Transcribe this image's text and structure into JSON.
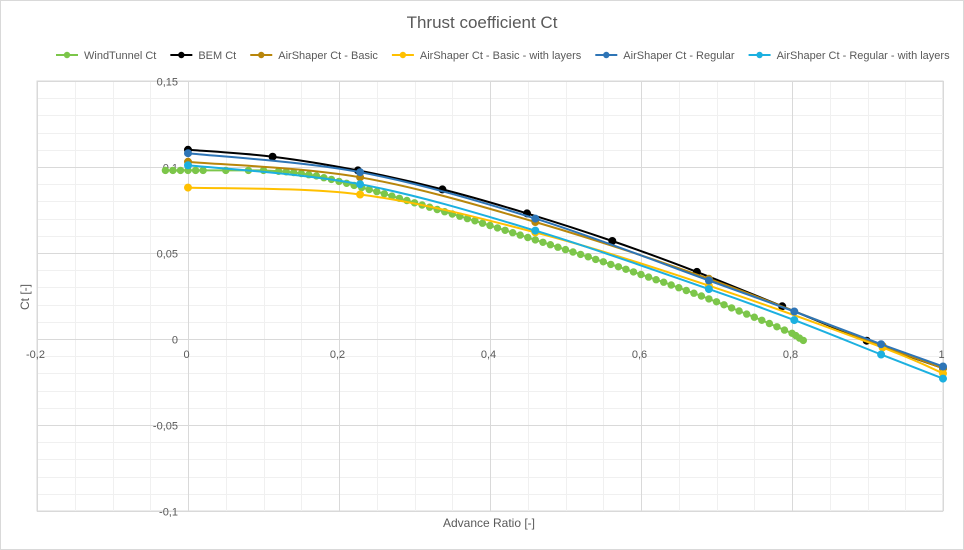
{
  "chart_data": {
    "type": "scatter",
    "title": "Thrust coefficient Ct",
    "xlabel": "Advance Ratio [-]",
    "ylabel": "Ct [-]",
    "xlim": [
      -0.2,
      1.0
    ],
    "ylim": [
      -0.1,
      0.15
    ],
    "x_ticks": [
      -0.2,
      0,
      0.2,
      0.4,
      0.6,
      0.8,
      1
    ],
    "x_tick_labels": [
      "-0,2",
      "0",
      "0,2",
      "0,4",
      "0,6",
      "0,8",
      "1"
    ],
    "y_ticks": [
      -0.1,
      -0.05,
      0,
      0.05,
      0.1,
      0.15
    ],
    "y_tick_labels": [
      "-0,1",
      "-0,05",
      "0",
      "0,05",
      "0,1",
      "0,15"
    ],
    "grid": true,
    "minor_grid": true,
    "legend_position": "top",
    "series": [
      {
        "name": "WindTunnel Ct",
        "color": "#7cc64a",
        "marker_size": 3.2,
        "smooth": false,
        "x": [
          -0.03,
          -0.02,
          -0.01,
          0.0,
          0.01,
          0.02,
          0.05,
          0.08,
          0.1,
          0.12,
          0.13,
          0.14,
          0.15,
          0.16,
          0.17,
          0.18,
          0.19,
          0.2,
          0.21,
          0.22,
          0.23,
          0.24,
          0.25,
          0.26,
          0.27,
          0.28,
          0.29,
          0.3,
          0.31,
          0.32,
          0.33,
          0.34,
          0.35,
          0.36,
          0.37,
          0.38,
          0.39,
          0.4,
          0.41,
          0.42,
          0.43,
          0.44,
          0.45,
          0.46,
          0.47,
          0.48,
          0.49,
          0.5,
          0.51,
          0.52,
          0.53,
          0.54,
          0.55,
          0.56,
          0.57,
          0.58,
          0.59,
          0.6,
          0.61,
          0.62,
          0.63,
          0.64,
          0.65,
          0.66,
          0.67,
          0.68,
          0.69,
          0.7,
          0.71,
          0.72,
          0.73,
          0.74,
          0.75,
          0.76,
          0.77,
          0.78,
          0.79,
          0.8,
          0.805,
          0.81,
          0.815
        ],
        "y": [
          0.098,
          0.098,
          0.098,
          0.098,
          0.098,
          0.098,
          0.098,
          0.098,
          0.098,
          0.0975,
          0.0972,
          0.0968,
          0.0962,
          0.0955,
          0.0948,
          0.0938,
          0.0928,
          0.0916,
          0.0905,
          0.0893,
          0.0881,
          0.0869,
          0.0857,
          0.0844,
          0.0831,
          0.0818,
          0.0805,
          0.0792,
          0.0779,
          0.0766,
          0.0753,
          0.074,
          0.0727,
          0.0714,
          0.07,
          0.0687,
          0.0673,
          0.066,
          0.0646,
          0.0632,
          0.0618,
          0.0604,
          0.059,
          0.0576,
          0.0562,
          0.0548,
          0.0534,
          0.052,
          0.0506,
          0.0492,
          0.0478,
          0.0463,
          0.0449,
          0.0434,
          0.042,
          0.0405,
          0.039,
          0.0375,
          0.036,
          0.0345,
          0.033,
          0.0314,
          0.0298,
          0.0282,
          0.0266,
          0.025,
          0.0233,
          0.0216,
          0.0199,
          0.0181,
          0.0163,
          0.0145,
          0.0127,
          0.0109,
          0.009,
          0.0071,
          0.0052,
          0.0033,
          0.002,
          0.0005,
          -0.0008
        ]
      },
      {
        "name": "BEM Ct",
        "color": "#000000",
        "marker_size": 3.5,
        "smooth": true,
        "x": [
          0.0,
          0.112,
          0.225,
          0.337,
          0.449,
          0.562,
          0.674,
          0.787,
          0.899,
          1.0
        ],
        "y": [
          0.11,
          0.106,
          0.098,
          0.087,
          0.073,
          0.057,
          0.039,
          0.019,
          -0.001,
          -0.017
        ]
      },
      {
        "name": "AirShaper Ct - Basic",
        "color": "#b8860b",
        "marker_size": 3.5,
        "smooth": true,
        "x": [
          0.0,
          0.228,
          0.46,
          0.69,
          0.92,
          1.0
        ],
        "y": [
          0.103,
          0.094,
          0.068,
          0.035,
          -0.004,
          -0.017
        ]
      },
      {
        "name": "AirShaper Ct - Basic - with layers",
        "color": "#ffc000",
        "marker_size": 3.5,
        "smooth": true,
        "x": [
          0.0,
          0.228,
          0.46,
          0.69,
          0.92,
          1.0
        ],
        "y": [
          0.088,
          0.084,
          0.062,
          0.031,
          -0.005,
          -0.02
        ]
      },
      {
        "name": "AirShaper Ct - Regular",
        "color": "#2e75b6",
        "marker_size": 3.5,
        "smooth": true,
        "x": [
          0.0,
          0.228,
          0.46,
          0.69,
          0.803,
          0.918,
          1.0
        ],
        "y": [
          0.108,
          0.097,
          0.07,
          0.034,
          0.016,
          -0.003,
          -0.016
        ]
      },
      {
        "name": "AirShaper Ct - Regular - with layers",
        "color": "#1cb0e0",
        "marker_size": 3.5,
        "smooth": true,
        "x": [
          0.0,
          0.228,
          0.46,
          0.69,
          0.803,
          0.918,
          1.0
        ],
        "y": [
          0.101,
          0.09,
          0.063,
          0.029,
          0.011,
          -0.009,
          -0.023
        ]
      }
    ]
  }
}
